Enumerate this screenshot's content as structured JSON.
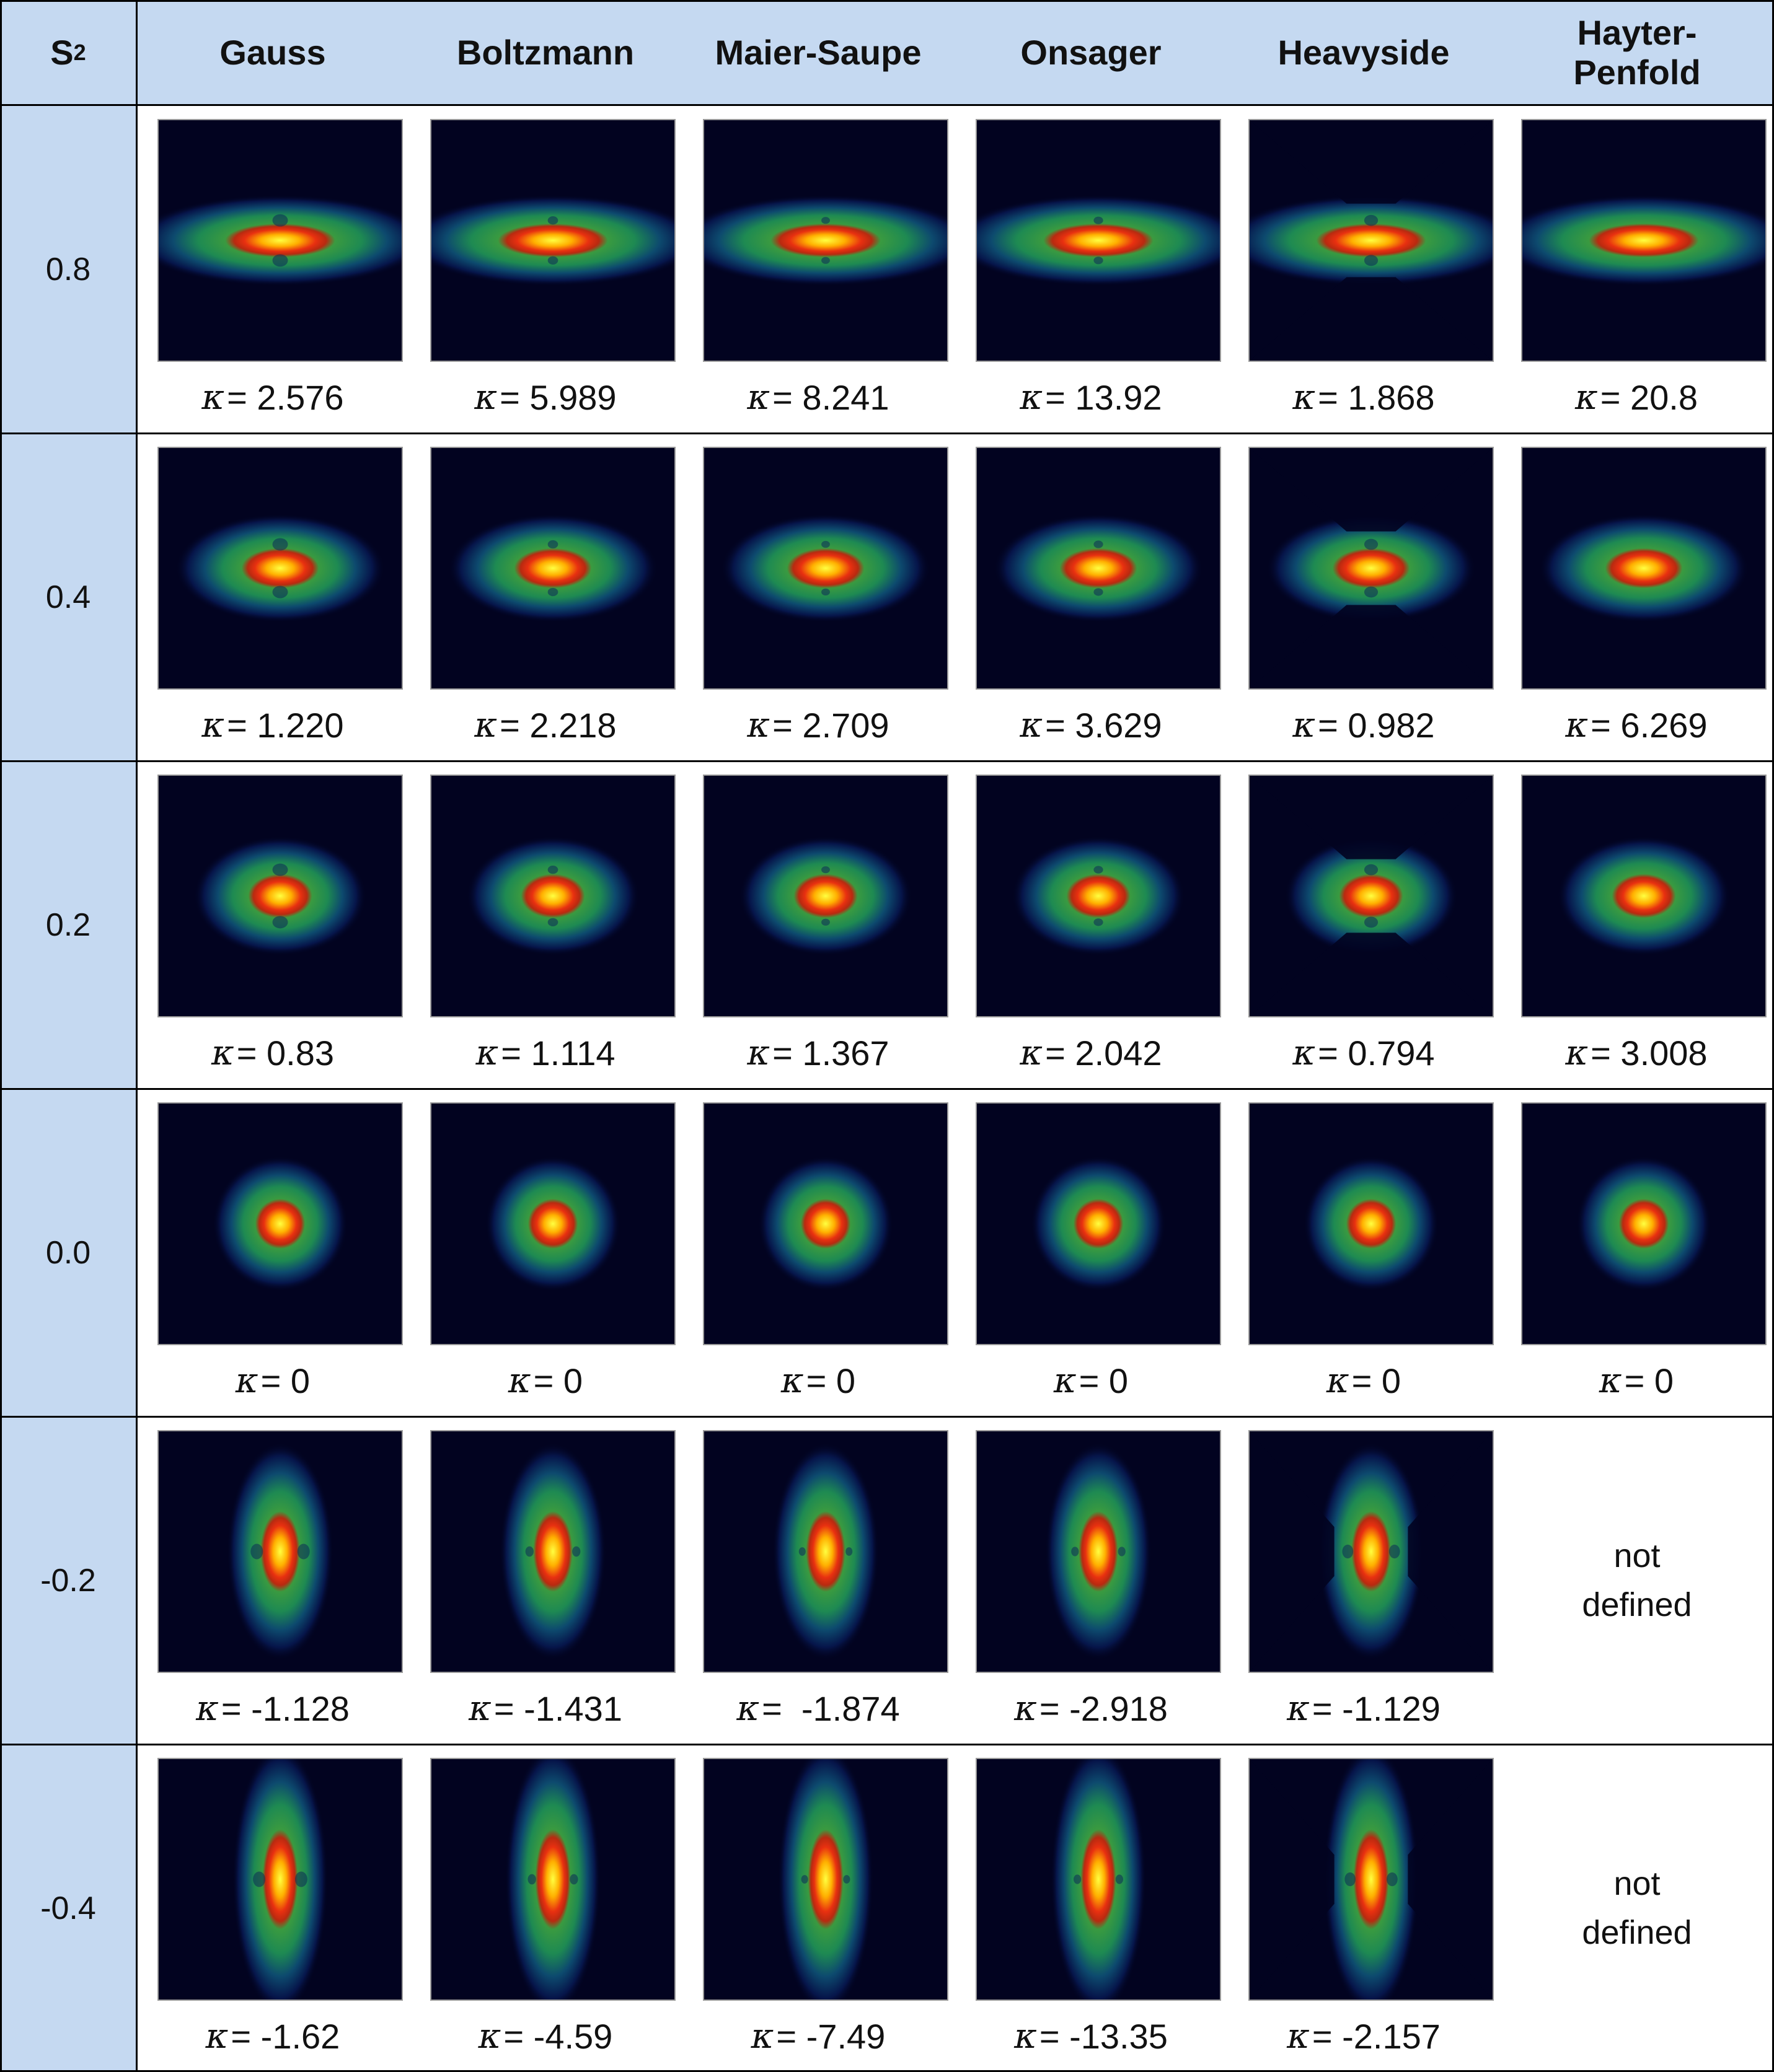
{
  "header": {
    "s2_label": "S",
    "s2_subscript": "2",
    "columns": [
      "Gauss",
      "Boltzmann",
      "Maier-Saupe",
      "Onsager",
      "Heavyside",
      "Hayter-\nPenfold"
    ]
  },
  "kappa_symbol": "κ",
  "rows": [
    {
      "s2": "0.8",
      "kappas": [
        "= 2.576",
        "= 5.989",
        "= 8.241",
        "= 13.92",
        "= 1.868",
        "= 20.8"
      ]
    },
    {
      "s2": "0.4",
      "kappas": [
        "= 1.220",
        "= 2.218",
        "= 2.709",
        "= 3.629",
        "= 0.982",
        "= 6.269"
      ]
    },
    {
      "s2": "0.2",
      "kappas": [
        "= 0.83",
        "= 1.114",
        "= 1.367",
        "= 2.042",
        "= 0.794",
        "= 3.008"
      ]
    },
    {
      "s2": "0.0",
      "kappas": [
        "= 0",
        "= 0",
        "= 0",
        "= 0",
        "= 0",
        "= 0"
      ]
    },
    {
      "s2": "-0.2",
      "kappas": [
        "= -1.128",
        "= -1.431",
        "=  -1.874",
        "= -2.918",
        "= -1.129",
        null
      ],
      "not_defined": "not\ndefined"
    },
    {
      "s2": "-0.4",
      "kappas": [
        "= -1.62",
        "= -4.59",
        "= -7.49",
        "= -13.35",
        "= -2.157",
        null
      ],
      "not_defined": "not\ndefined"
    }
  ],
  "colors": {
    "header_bg": "#c5d9f1",
    "image_bg": "#020320"
  }
}
